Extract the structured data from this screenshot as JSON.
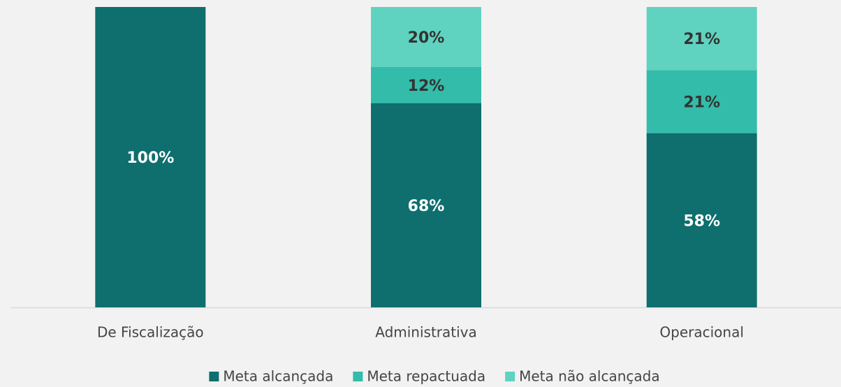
{
  "chart_data": {
    "type": "stacked_bar",
    "categories": [
      "De Fiscalização",
      "Administrativa",
      "Operacional"
    ],
    "series": [
      {
        "name": "Meta alcançada",
        "color": "#0f6e6e",
        "label_color": "#ffffff",
        "values": [
          100,
          68,
          58
        ],
        "value_labels": [
          "100%",
          "68%",
          "58%"
        ]
      },
      {
        "name": "Meta repactuada",
        "color": "#33bca9",
        "label_color": "#333333",
        "values": [
          null,
          12,
          21
        ],
        "value_labels": [
          null,
          "12%",
          "21%"
        ]
      },
      {
        "name": "Meta não alcançada",
        "color": "#5fd3c0",
        "label_color": "#333333",
        "values": [
          null,
          20,
          21
        ],
        "value_labels": [
          null,
          "20%",
          "21%"
        ]
      }
    ],
    "ylim": [
      0,
      100
    ]
  }
}
